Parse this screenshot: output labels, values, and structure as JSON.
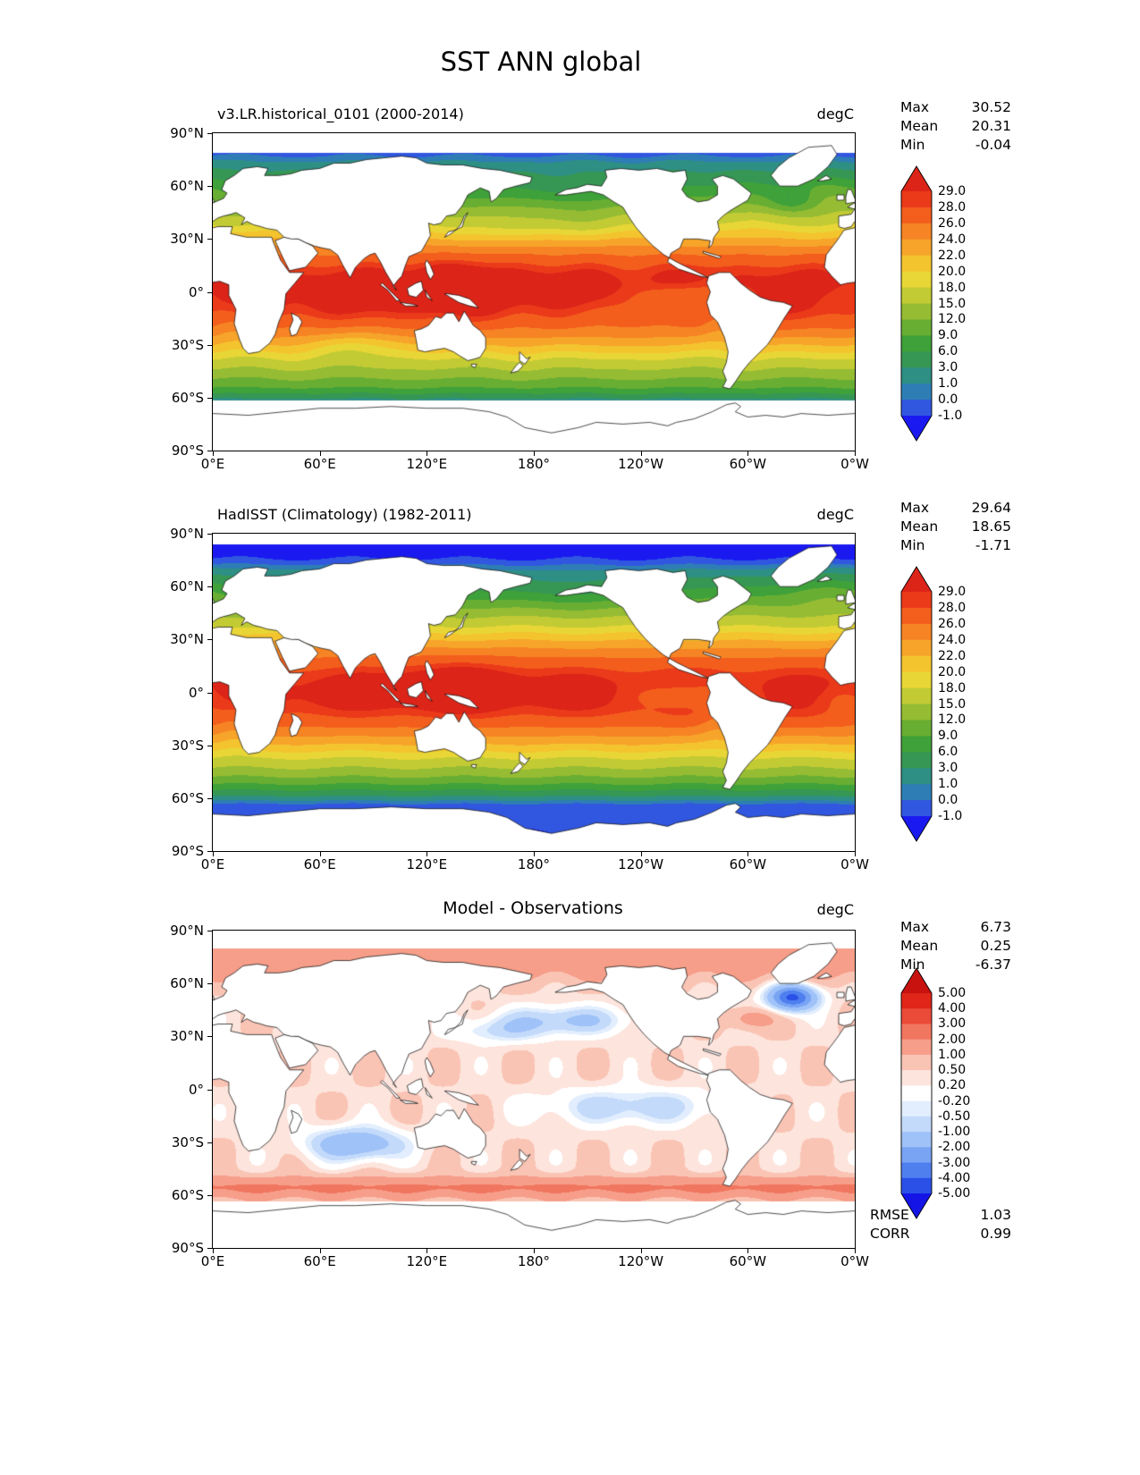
{
  "page": {
    "title": "SST ANN global"
  },
  "axes": {
    "y_ticks": [
      "90°N",
      "60°N",
      "30°N",
      "0°",
      "30°S",
      "60°S",
      "90°S"
    ],
    "x_ticks": [
      "0°E",
      "60°E",
      "120°E",
      "180°",
      "120°W",
      "60°W",
      "0°W"
    ]
  },
  "panels": [
    {
      "title": "v3.LR.historical_0101 (2000-2014)",
      "units": "degC",
      "stats": [
        [
          "Max",
          "30.52"
        ],
        [
          "Mean",
          "20.31"
        ],
        [
          "Min",
          "-0.04"
        ]
      ],
      "colorbar_ticks": [
        "29.0",
        "28.0",
        "26.0",
        "24.0",
        "22.0",
        "20.0",
        "18.0",
        "15.0",
        "12.0",
        "9.0",
        "6.0",
        "3.0",
        "1.0",
        "0.0",
        "-1.0"
      ]
    },
    {
      "title": "HadISST (Climatology) (1982-2011)",
      "units": "degC",
      "stats": [
        [
          "Max",
          "29.64"
        ],
        [
          "Mean",
          "18.65"
        ],
        [
          "Min",
          "-1.71"
        ]
      ],
      "colorbar_ticks": [
        "29.0",
        "28.0",
        "26.0",
        "24.0",
        "22.0",
        "20.0",
        "18.0",
        "15.0",
        "12.0",
        "9.0",
        "6.0",
        "3.0",
        "1.0",
        "0.0",
        "-1.0"
      ]
    },
    {
      "title": "Model - Observations",
      "units": "degC",
      "stats": [
        [
          "Max",
          "6.73"
        ],
        [
          "Mean",
          "0.25"
        ],
        [
          "Min",
          "-6.37"
        ]
      ],
      "extra_stats": [
        [
          "RMSE",
          "1.03"
        ],
        [
          "CORR",
          "0.99"
        ]
      ],
      "colorbar_ticks": [
        "5.00",
        "4.00",
        "3.00",
        "2.00",
        "1.00",
        "0.50",
        "0.20",
        "-0.20",
        "-0.50",
        "-1.00",
        "-2.00",
        "-3.00",
        "-4.00",
        "-5.00"
      ]
    }
  ],
  "chart_data": [
    {
      "type": "heatmap",
      "variant": "global-filled-contour-map",
      "title": "v3.LR.historical_0101 (2000-2014)",
      "units": "degC",
      "lon_range": [
        0,
        360
      ],
      "lat_range": [
        -90,
        90
      ],
      "x_tick_labels": [
        "0°E",
        "60°E",
        "120°E",
        "180°",
        "120°W",
        "60°W",
        "0°W"
      ],
      "y_tick_labels": [
        "90°N",
        "60°N",
        "30°N",
        "0°",
        "30°S",
        "60°S",
        "90°S"
      ],
      "levels": [
        -1,
        0,
        1,
        3,
        6,
        9,
        12,
        15,
        18,
        20,
        22,
        24,
        26,
        28,
        29
      ],
      "palette": {
        "under": "#1A1AF0",
        "colors": [
          "#3157E0",
          "#2E7EB5",
          "#2E8F84",
          "#369754",
          "#3FA139",
          "#68AE33",
          "#95BC33",
          "#C2CB34",
          "#E8D636",
          "#F4C42F",
          "#F6A52A",
          "#F68424",
          "#F35E1D",
          "#EA3A1A"
        ],
        "over": "#DC2418"
      },
      "stats": {
        "max": 30.52,
        "mean": 20.31,
        "min": -0.04
      }
    },
    {
      "type": "heatmap",
      "variant": "global-filled-contour-map",
      "title": "HadISST (Climatology) (1982-2011)",
      "units": "degC",
      "lon_range": [
        0,
        360
      ],
      "lat_range": [
        -90,
        90
      ],
      "x_tick_labels": [
        "0°E",
        "60°E",
        "120°E",
        "180°",
        "120°W",
        "60°W",
        "0°W"
      ],
      "y_tick_labels": [
        "90°N",
        "60°N",
        "30°N",
        "0°",
        "30°S",
        "60°S",
        "90°S"
      ],
      "levels": [
        -1,
        0,
        1,
        3,
        6,
        9,
        12,
        15,
        18,
        20,
        22,
        24,
        26,
        28,
        29
      ],
      "palette": {
        "under": "#1A1AF0",
        "colors": [
          "#3157E0",
          "#2E7EB5",
          "#2E8F84",
          "#369754",
          "#3FA139",
          "#68AE33",
          "#95BC33",
          "#C2CB34",
          "#E8D636",
          "#F4C42F",
          "#F6A52A",
          "#F68424",
          "#F35E1D",
          "#EA3A1A"
        ],
        "over": "#DC2418"
      },
      "stats": {
        "max": 29.64,
        "mean": 18.65,
        "min": -1.71
      }
    },
    {
      "type": "heatmap",
      "variant": "global-filled-contour-difference-map",
      "title": "Model - Observations",
      "units": "degC",
      "lon_range": [
        0,
        360
      ],
      "lat_range": [
        -90,
        90
      ],
      "x_tick_labels": [
        "0°E",
        "60°E",
        "120°E",
        "180°",
        "120°W",
        "60°W",
        "0°W"
      ],
      "y_tick_labels": [
        "90°N",
        "60°N",
        "30°N",
        "0°",
        "30°S",
        "60°S",
        "90°S"
      ],
      "levels": [
        -5,
        -4,
        -3,
        -2,
        -1,
        -0.5,
        -0.2,
        0.2,
        0.5,
        1,
        2,
        3,
        4,
        5
      ],
      "palette": {
        "under": "#1414E6",
        "colors": [
          "#2A50E8",
          "#4F7FEF",
          "#79A4F4",
          "#9FC2F8",
          "#C3DAFB",
          "#E2EEFD",
          "#FFFFFF",
          "#FDE4DC",
          "#FAC4B5",
          "#F69E89",
          "#F1765F",
          "#EA4A38",
          "#E02618"
        ],
        "over": "#C81210"
      },
      "stats": {
        "max": 6.73,
        "mean": 0.25,
        "min": -6.37
      },
      "rmse": 1.03,
      "corr": 0.99
    }
  ]
}
